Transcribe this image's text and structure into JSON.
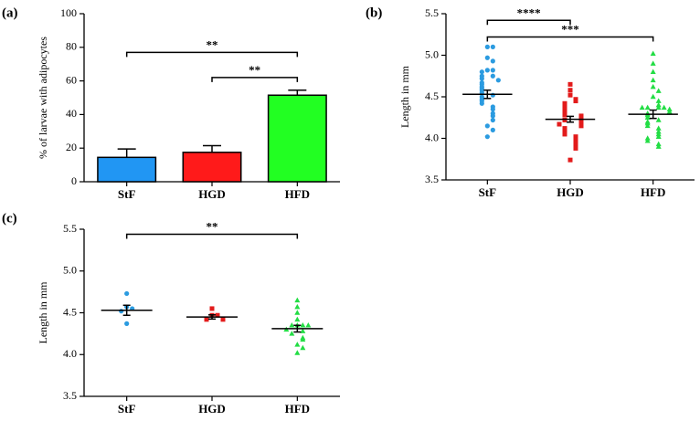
{
  "chart_data": [
    {
      "type": "bar",
      "panel_label": "(a)",
      "y_label": "% of larvae with adipocytes",
      "categories": [
        "StF",
        "HGD",
        "HFD"
      ],
      "values": [
        14.5,
        17.5,
        51.5
      ],
      "errors": [
        5,
        4,
        3
      ],
      "colors": [
        "#2196f3",
        "#ff1a1a",
        "#22ff22"
      ],
      "ylim": [
        0,
        100
      ],
      "yticks": [
        0,
        20,
        40,
        60,
        80,
        100
      ],
      "annotations": [
        {
          "text": "**",
          "from": 0,
          "to": 2,
          "y": 77
        },
        {
          "text": "**",
          "from": 1,
          "to": 2,
          "y": 62
        }
      ]
    },
    {
      "type": "dot",
      "panel_label": "(b)",
      "y_label": "Length in mm",
      "categories": [
        "StF",
        "HGD",
        "HFD"
      ],
      "points": [
        [
          5.1,
          5.1,
          4.97,
          4.93,
          4.82,
          4.82,
          4.8,
          4.75,
          4.75,
          4.72,
          4.7,
          4.67,
          4.65,
          4.62,
          4.6,
          4.58,
          4.55,
          4.52,
          4.5,
          4.47,
          4.45,
          4.42,
          4.38,
          4.35,
          4.3,
          4.27,
          4.22,
          4.15,
          4.1,
          4.02
        ],
        [
          4.65,
          4.58,
          4.52,
          4.47,
          4.45,
          4.42,
          4.4,
          4.37,
          4.35,
          4.32,
          4.3,
          4.28,
          4.27,
          4.25,
          4.22,
          4.22,
          4.2,
          4.18,
          4.17,
          4.15,
          4.12,
          4.1,
          4.08,
          4.05,
          4.02,
          3.98,
          3.95,
          3.92,
          3.88,
          3.74
        ],
        [
          5.02,
          4.9,
          4.8,
          4.7,
          4.62,
          4.57,
          4.5,
          4.45,
          4.4,
          4.37,
          4.37,
          4.37,
          4.37,
          4.35,
          4.32,
          4.3,
          4.28,
          4.25,
          4.22,
          4.2,
          4.18,
          4.15,
          4.12,
          4.08,
          4.05,
          4.02,
          4.0,
          3.97,
          3.93,
          3.9
        ]
      ],
      "means": [
        4.53,
        4.23,
        4.29
      ],
      "errors": [
        0.05,
        0.035,
        0.05
      ],
      "colors": [
        "#2b9be0",
        "#e31b1b",
        "#22dd44"
      ],
      "markers": [
        "circle",
        "square",
        "triangle"
      ],
      "ylim": [
        3.5,
        5.5
      ],
      "yticks": [
        3.5,
        {
          "value": 4,
          "label": "4.0"
        },
        4.5,
        {
          "value": 5,
          "label": "5.0"
        },
        5.5
      ],
      "annotations": [
        {
          "text": "****",
          "from": 0,
          "to": 1,
          "y": 5.42
        },
        {
          "text": "***",
          "from": 0,
          "to": 2,
          "y": 5.22
        }
      ]
    },
    {
      "type": "dot",
      "panel_label": "(c)",
      "y_label": "Length in mm",
      "categories": [
        "StF",
        "HGD",
        "HFD"
      ],
      "points": [
        [
          4.73,
          4.57,
          4.55,
          4.52,
          4.37
        ],
        [
          4.55,
          4.47,
          4.47,
          4.42,
          4.42
        ],
        [
          4.65,
          4.57,
          4.5,
          4.42,
          4.35,
          4.35,
          4.35,
          4.35,
          4.3,
          4.28,
          4.25,
          4.2,
          4.18,
          4.12,
          4.08,
          4.02
        ]
      ],
      "means": [
        4.53,
        4.45,
        4.31
      ],
      "errors": [
        0.06,
        0.025,
        0.04
      ],
      "colors": [
        "#2b9be0",
        "#e31b1b",
        "#22dd44"
      ],
      "markers": [
        "circle",
        "square",
        "triangle"
      ],
      "ylim": [
        3.5,
        5.5
      ],
      "yticks": [
        3.5,
        {
          "value": 4,
          "label": "4.0"
        },
        4.5,
        {
          "value": 5,
          "label": "5.0"
        },
        5.5
      ],
      "annotations": [
        {
          "text": "**",
          "from": 0,
          "to": 2,
          "y": 5.44
        }
      ]
    }
  ]
}
